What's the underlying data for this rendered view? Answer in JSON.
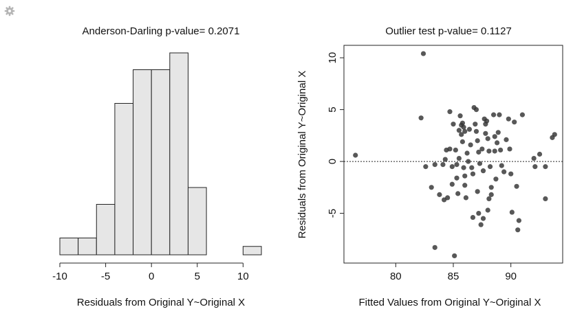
{
  "toolbar": {
    "settings_icon": "gear-icon",
    "icon_color": "#b5b5b5"
  },
  "chart_data": [
    {
      "type": "bar",
      "title": "Anderson-Darling p-value= 0.2071",
      "xlabel": "Residuals from Original Y~Original X",
      "ylabel": "",
      "bins": [
        {
          "from": -10,
          "to": -8,
          "count": 1
        },
        {
          "from": -8,
          "to": -6,
          "count": 1
        },
        {
          "from": -6,
          "to": -4,
          "count": 3
        },
        {
          "from": -4,
          "to": -2,
          "count": 9
        },
        {
          "from": -2,
          "to": 0,
          "count": 11
        },
        {
          "from": 0,
          "to": 2,
          "count": 11
        },
        {
          "from": 2,
          "to": 4,
          "count": 12
        },
        {
          "from": 4,
          "to": 6,
          "count": 4
        },
        {
          "from": 6,
          "to": 8,
          "count": 0
        },
        {
          "from": 8,
          "to": 10,
          "count": 0
        },
        {
          "from": 10,
          "to": 12,
          "count": 0.5
        }
      ],
      "xlim": [
        -10,
        12
      ],
      "ylim": [
        0,
        12
      ],
      "x_ticks": [
        -10,
        -5,
        0,
        5,
        10
      ],
      "x_tick_labels": [
        "-10",
        "-5",
        "0",
        "5",
        "10"
      ],
      "bar_fill": "#e6e6e6",
      "bar_stroke": "#222222"
    },
    {
      "type": "scatter",
      "title": "Outlier test p-value= 0.1127",
      "xlabel": "Fitted Values from Original Y~Original X",
      "ylabel": "Residuals from Original Y~Original X",
      "xlim": [
        75.5,
        94.5
      ],
      "ylim": [
        -9.8,
        11.2
      ],
      "x_ticks": [
        80,
        85,
        90
      ],
      "x_tick_labels": [
        "80",
        "85",
        "90"
      ],
      "y_ticks": [
        -5,
        0,
        5,
        10
      ],
      "y_tick_labels": [
        "-5",
        "0",
        "5",
        "10"
      ],
      "reference_line": {
        "y": 0,
        "style": "dotted"
      },
      "point_color": "#333333",
      "points": [
        {
          "x": 76.5,
          "y": 0.6
        },
        {
          "x": 82.4,
          "y": 10.4
        },
        {
          "x": 82.2,
          "y": 4.2
        },
        {
          "x": 82.6,
          "y": -0.5
        },
        {
          "x": 83.1,
          "y": -2.5
        },
        {
          "x": 83.4,
          "y": -0.3
        },
        {
          "x": 83.4,
          "y": -8.3
        },
        {
          "x": 83.8,
          "y": -3.2
        },
        {
          "x": 84.2,
          "y": -3.7
        },
        {
          "x": 84.3,
          "y": 0.2
        },
        {
          "x": 84.1,
          "y": -0.3
        },
        {
          "x": 84.4,
          "y": 1.1
        },
        {
          "x": 84.5,
          "y": -3.5
        },
        {
          "x": 84.7,
          "y": 4.8
        },
        {
          "x": 84.7,
          "y": 1.2
        },
        {
          "x": 84.9,
          "y": -2.2
        },
        {
          "x": 84.9,
          "y": -0.5
        },
        {
          "x": 85.0,
          "y": 3.6
        },
        {
          "x": 85.1,
          "y": -9.1
        },
        {
          "x": 85.2,
          "y": 1.1
        },
        {
          "x": 85.3,
          "y": -0.3
        },
        {
          "x": 85.3,
          "y": -1.6
        },
        {
          "x": 85.4,
          "y": -3.1
        },
        {
          "x": 85.5,
          "y": 0.3
        },
        {
          "x": 85.6,
          "y": 4.4
        },
        {
          "x": 85.5,
          "y": 3.0
        },
        {
          "x": 85.7,
          "y": 3.5
        },
        {
          "x": 85.8,
          "y": 3.7
        },
        {
          "x": 85.9,
          "y": 3.3
        },
        {
          "x": 85.7,
          "y": 2.6
        },
        {
          "x": 85.8,
          "y": 1.9
        },
        {
          "x": 86.0,
          "y": 2.9
        },
        {
          "x": 85.9,
          "y": -0.6
        },
        {
          "x": 86.0,
          "y": -1.4
        },
        {
          "x": 86.0,
          "y": -2.3
        },
        {
          "x": 86.1,
          "y": -3.5
        },
        {
          "x": 86.2,
          "y": 0.8
        },
        {
          "x": 86.3,
          "y": 0.0
        },
        {
          "x": 86.4,
          "y": 3.1
        },
        {
          "x": 86.5,
          "y": 1.6
        },
        {
          "x": 86.6,
          "y": -0.6
        },
        {
          "x": 86.7,
          "y": -1.2
        },
        {
          "x": 86.7,
          "y": -5.4
        },
        {
          "x": 86.8,
          "y": 5.2
        },
        {
          "x": 86.9,
          "y": 3.6
        },
        {
          "x": 87.0,
          "y": 5.0
        },
        {
          "x": 87.0,
          "y": 2.9
        },
        {
          "x": 87.1,
          "y": 2.0
        },
        {
          "x": 87.2,
          "y": 0.9
        },
        {
          "x": 87.3,
          "y": -0.2
        },
        {
          "x": 87.1,
          "y": -2.9
        },
        {
          "x": 87.2,
          "y": -5.0
        },
        {
          "x": 87.4,
          "y": -6.1
        },
        {
          "x": 87.5,
          "y": 1.2
        },
        {
          "x": 87.6,
          "y": -0.9
        },
        {
          "x": 87.7,
          "y": 4.1
        },
        {
          "x": 87.8,
          "y": 3.6
        },
        {
          "x": 87.9,
          "y": 3.9
        },
        {
          "x": 87.6,
          "y": -5.5
        },
        {
          "x": 87.8,
          "y": 2.7
        },
        {
          "x": 88.0,
          "y": 2.2
        },
        {
          "x": 88.1,
          "y": 1.0
        },
        {
          "x": 88.2,
          "y": -0.5
        },
        {
          "x": 88.0,
          "y": -4.7
        },
        {
          "x": 88.1,
          "y": -3.6
        },
        {
          "x": 88.3,
          "y": -2.5
        },
        {
          "x": 88.3,
          "y": -3.2
        },
        {
          "x": 88.5,
          "y": 4.5
        },
        {
          "x": 88.6,
          "y": 2.4
        },
        {
          "x": 88.6,
          "y": 1.0
        },
        {
          "x": 88.7,
          "y": -1.7
        },
        {
          "x": 88.8,
          "y": 1.8
        },
        {
          "x": 88.9,
          "y": 2.8
        },
        {
          "x": 89.0,
          "y": 4.5
        },
        {
          "x": 89.1,
          "y": 1.1
        },
        {
          "x": 89.2,
          "y": -0.4
        },
        {
          "x": 89.4,
          "y": -1.0
        },
        {
          "x": 89.6,
          "y": 2.1
        },
        {
          "x": 89.8,
          "y": 4.1
        },
        {
          "x": 89.9,
          "y": 1.2
        },
        {
          "x": 90.0,
          "y": -1.2
        },
        {
          "x": 90.1,
          "y": -4.9
        },
        {
          "x": 90.3,
          "y": 3.8
        },
        {
          "x": 90.5,
          "y": -2.4
        },
        {
          "x": 90.6,
          "y": -6.6
        },
        {
          "x": 90.7,
          "y": -5.7
        },
        {
          "x": 91.0,
          "y": 4.5
        },
        {
          "x": 92.0,
          "y": 0.3
        },
        {
          "x": 92.1,
          "y": -0.5
        },
        {
          "x": 92.5,
          "y": 0.7
        },
        {
          "x": 93.0,
          "y": -0.5
        },
        {
          "x": 93.0,
          "y": -3.6
        },
        {
          "x": 93.6,
          "y": 2.3
        },
        {
          "x": 93.8,
          "y": 2.6
        }
      ]
    }
  ]
}
